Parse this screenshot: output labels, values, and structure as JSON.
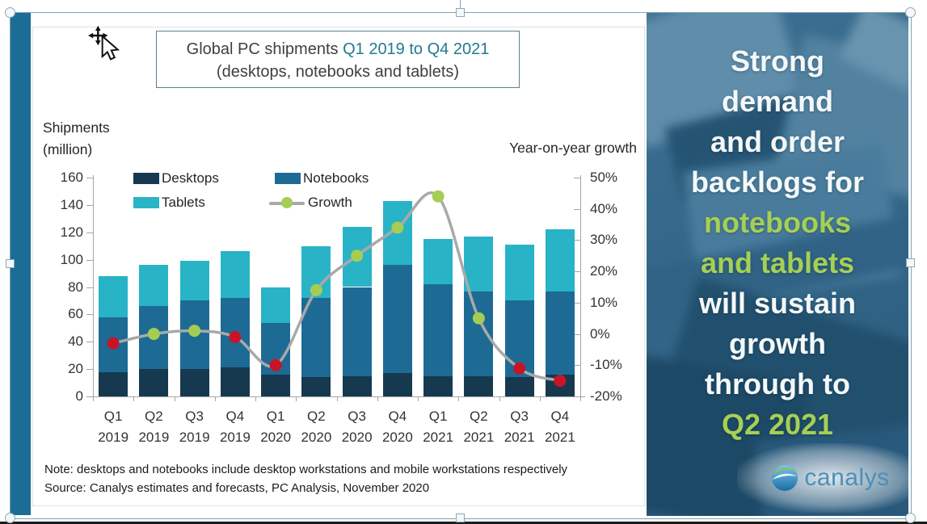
{
  "chart_labels": {
    "title_prefix": "Global PC shipments ",
    "title_highlight": "Q1 2019 to Q4 2021",
    "title_subtitle": "(desktops, notebooks and tablets)",
    "shipments_line1": "Shipments",
    "shipments_line2": "(million)",
    "yoy_label": "Year-on-year growth",
    "note1": "Note: desktops and notebooks include desktop workstations and mobile workstations respectively",
    "note2": "Source: Canalys estimates and forecasts, PC Analysis, November 2020"
  },
  "chart_data": {
    "type": "bar",
    "stacked": true,
    "title": "Global PC shipments Q1 2019 to Q4 2021 (desktops, notebooks and tablets)",
    "categories": [
      "Q1 2019",
      "Q2 2019",
      "Q3 2019",
      "Q4 2019",
      "Q1 2020",
      "Q2 2020",
      "Q3 2020",
      "Q4 2020",
      "Q1 2021",
      "Q2 2021",
      "Q3 2021",
      "Q4 2021"
    ],
    "series": [
      {
        "name": "Desktops",
        "color": "#16394f",
        "values": [
          18,
          20,
          20,
          21,
          16,
          14,
          15,
          17,
          15,
          15,
          14,
          16
        ]
      },
      {
        "name": "Notebooks",
        "color": "#1d6b94",
        "values": [
          40,
          46,
          50,
          51,
          38,
          58,
          65,
          79,
          67,
          62,
          56,
          61
        ]
      },
      {
        "name": "Tablets",
        "color": "#29b3c7",
        "values": [
          30,
          30,
          29,
          34,
          26,
          38,
          44,
          47,
          33,
          40,
          41,
          45
        ]
      }
    ],
    "totals": [
      88,
      96,
      99,
      106,
      80,
      110,
      124,
      143,
      115,
      117,
      111,
      122
    ],
    "line_series": {
      "name": "Growth",
      "axis": "right",
      "line_color": "#a9a9a9",
      "marker_positive_color": "#a5cd53",
      "marker_negative_color": "#c81426",
      "values_pct": [
        -3,
        0,
        1,
        -1,
        -10,
        14,
        25,
        34,
        44,
        5,
        -11,
        -15
      ]
    },
    "left_axis": {
      "label": "Shipments (million)",
      "min": 0,
      "max": 160,
      "step": 20,
      "ticks": [
        0,
        20,
        40,
        60,
        80,
        100,
        120,
        140,
        160
      ]
    },
    "right_axis": {
      "label": "Year-on-year growth",
      "min": -20,
      "max": 50,
      "step": 10,
      "unit": "%",
      "ticks": [
        -20,
        -10,
        0,
        10,
        20,
        30,
        40,
        50
      ]
    },
    "legend": [
      "Desktops",
      "Notebooks",
      "Tablets",
      "Growth"
    ],
    "grid": false,
    "legend_position": "top-inside"
  },
  "panel": {
    "lines": [
      {
        "text": "Strong",
        "color": "white"
      },
      {
        "text": "demand",
        "color": "white"
      },
      {
        "text": "and order",
        "color": "white"
      },
      {
        "text": "backlogs for",
        "color": "white"
      },
      {
        "text": "notebooks",
        "color": "green"
      },
      {
        "text": "and tablets",
        "color": "green"
      },
      {
        "text": "will sustain",
        "color": "white"
      },
      {
        "text": "growth",
        "color": "white"
      },
      {
        "text": "through to",
        "color": "white"
      },
      {
        "text": "Q2 2021",
        "color": "green"
      }
    ],
    "logo_text": "canalys",
    "text_color": "#f4f8f9",
    "accent_color": "#a6cf55"
  },
  "colors": {
    "accent_bar": "#1b6d96",
    "title_highlight": "#217a8e",
    "selection_chrome": "#7fa3b6",
    "axis": "#a6a6a6",
    "panel_base": "#3a6c8e"
  }
}
